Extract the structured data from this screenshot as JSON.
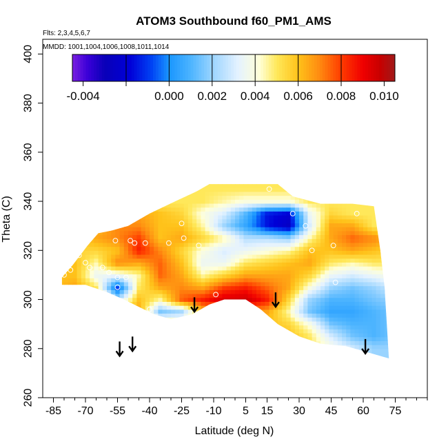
{
  "chart_data": {
    "type": "heatmap",
    "title": "ATOM3 Southbound f60_PM1_AMS",
    "flights_note": "Flts: 2,3,4,5,6,7",
    "dates_note": "MMDD: 1001,1004,1006,1008,1011,1014",
    "xlabel": "Latitude (deg N)",
    "ylabel": "Theta (C)",
    "xlim": [
      -90,
      90
    ],
    "ylim": [
      260,
      406
    ],
    "x_ticks": [
      -85,
      -70,
      -55,
      -40,
      -25,
      -10,
      5,
      15,
      30,
      45,
      60,
      75
    ],
    "x_tick_labels": [
      "-85",
      "-70",
      "-55",
      "-40",
      "-25",
      "-10",
      "5",
      "15",
      "30",
      "45",
      "60",
      "75"
    ],
    "x_minor_ticks": [
      -80,
      -75,
      -65,
      -60,
      -50,
      -45,
      -35,
      -30,
      -20,
      -15,
      -5,
      0,
      10,
      20,
      25,
      35,
      40,
      50,
      55,
      65,
      70,
      80,
      85,
      90
    ],
    "y_ticks": [
      260,
      280,
      300,
      320,
      340,
      360,
      380,
      400
    ],
    "y_tick_labels": [
      "260",
      "280",
      "300",
      "320",
      "340",
      "360",
      "380",
      "400"
    ],
    "colorbar": {
      "range": [
        -0.0045,
        0.0105
      ],
      "tick_values": [
        -0.004,
        0.0,
        0.002,
        0.004,
        0.006,
        0.008,
        0.01
      ],
      "tick_labels": [
        "-0.004",
        "0.000",
        "0.002",
        "0.004",
        "0.006",
        "0.008",
        "0.010"
      ],
      "minor_tick_values": [
        -0.002
      ],
      "divider_values": [
        -0.002,
        0.0,
        0.002,
        0.004,
        0.006,
        0.008
      ],
      "color_stops": [
        {
          "value": -0.0045,
          "color": "#7a1fe0"
        },
        {
          "value": -0.0038,
          "color": "#3b00d8"
        },
        {
          "value": -0.003,
          "color": "#0a00b8"
        },
        {
          "value": -0.0018,
          "color": "#0000d8"
        },
        {
          "value": -0.0008,
          "color": "#0044f4"
        },
        {
          "value": 0.0,
          "color": "#1a96ff"
        },
        {
          "value": 0.001,
          "color": "#4cb4ff"
        },
        {
          "value": 0.002,
          "color": "#9ad4ff"
        },
        {
          "value": 0.0032,
          "color": "#e4f2ff"
        },
        {
          "value": 0.0042,
          "color": "#ffffd8"
        },
        {
          "value": 0.005,
          "color": "#ffe85a"
        },
        {
          "value": 0.006,
          "color": "#ffc21a"
        },
        {
          "value": 0.007,
          "color": "#ff8a10"
        },
        {
          "value": 0.008,
          "color": "#ff3c00"
        },
        {
          "value": 0.009,
          "color": "#f00000"
        },
        {
          "value": 0.0098,
          "color": "#c80000"
        },
        {
          "value": 0.0105,
          "color": "#a01a1a"
        }
      ]
    },
    "arrows_lat": [
      -54,
      -48,
      -19,
      19,
      61
    ],
    "arrows_theta": [
      277,
      279,
      295,
      297,
      278
    ],
    "domain_outline": [
      [
        -81,
        309
      ],
      [
        -76,
        314
      ],
      [
        -69,
        322
      ],
      [
        -64,
        327
      ],
      [
        -58,
        328
      ],
      [
        -50,
        330
      ],
      [
        -40,
        335
      ],
      [
        -28,
        340
      ],
      [
        -18,
        344
      ],
      [
        -12,
        347
      ],
      [
        0,
        347
      ],
      [
        20,
        347
      ],
      [
        27,
        342
      ],
      [
        40,
        339
      ],
      [
        55,
        339
      ],
      [
        65,
        338
      ],
      [
        68,
        320
      ],
      [
        70,
        305
      ],
      [
        72,
        276
      ],
      [
        64,
        278
      ],
      [
        52,
        281
      ],
      [
        40,
        282
      ],
      [
        30,
        285
      ],
      [
        20,
        290
      ],
      [
        12,
        296
      ],
      [
        5,
        300
      ],
      [
        -5,
        300
      ],
      [
        -12,
        298
      ],
      [
        -20,
        294
      ],
      [
        -30,
        292
      ],
      [
        -38,
        294
      ],
      [
        -45,
        297
      ],
      [
        -52,
        300
      ],
      [
        -60,
        303
      ],
      [
        -70,
        306
      ],
      [
        -81,
        306
      ]
    ],
    "values_grid": {
      "lat": [
        -85,
        -75,
        -65,
        -55,
        -45,
        -35,
        -25,
        -15,
        -5,
        5,
        15,
        25,
        35,
        45,
        55,
        65,
        75
      ],
      "theta": [
        275,
        280,
        285,
        290,
        295,
        300,
        305,
        310,
        315,
        320,
        325,
        330,
        335,
        340,
        345,
        350
      ],
      "z": [
        [
          0.005,
          0.005,
          0.005,
          0.005,
          0.005,
          0.0055,
          0.006,
          0.006,
          0.006,
          0.0055,
          0.0055,
          0.005,
          0.005,
          0.005,
          0.005,
          0.005
        ],
        [
          0.005,
          0.005,
          0.005,
          0.005,
          0.005,
          0.006,
          0.0065,
          0.006,
          0.006,
          0.0055,
          0.0055,
          0.005,
          0.005,
          0.005,
          0.005,
          0.005
        ],
        [
          0.005,
          0.005,
          0.005,
          0.005,
          0.006,
          0.0065,
          0.005,
          0.0035,
          0.0045,
          0.0055,
          0.0065,
          0.006,
          0.005,
          0.005,
          0.005,
          0.005
        ],
        [
          0.005,
          0.005,
          0.005,
          0.005,
          0.006,
          0.0025,
          -0.001,
          0.0035,
          0.007,
          0.006,
          0.007,
          0.007,
          0.0065,
          0.006,
          0.006,
          0.006
        ],
        [
          0.005,
          0.005,
          0.005,
          0.0055,
          0.0065,
          0.006,
          0.005,
          0.0045,
          0.0065,
          0.0085,
          0.008,
          0.007,
          0.0065,
          0.006,
          0.006,
          0.006
        ],
        [
          0.005,
          0.005,
          0.005,
          0.0055,
          0.0015,
          0.0045,
          0.0065,
          0.0075,
          0.0075,
          0.007,
          0.006,
          0.006,
          0.006,
          0.005,
          0.005,
          0.005
        ],
        [
          0.005,
          0.005,
          0.005,
          0.0055,
          0.002,
          0.0075,
          0.007,
          0.0065,
          0.006,
          0.0055,
          0.0065,
          0.006,
          0.0055,
          0.005,
          0.005,
          0.005
        ],
        [
          0.006,
          0.006,
          0.006,
          0.006,
          0.006,
          0.0085,
          0.0065,
          0.0045,
          0.0035,
          0.004,
          0.0055,
          0.0045,
          0.004,
          0.005,
          0.005,
          0.005
        ],
        [
          0.006,
          0.006,
          0.006,
          0.006,
          0.0065,
          0.0095,
          0.008,
          0.0055,
          0.0035,
          0.003,
          0.0045,
          0.002,
          0.003,
          0.0045,
          0.005,
          0.005
        ],
        [
          0.006,
          0.006,
          0.006,
          0.006,
          0.007,
          0.0097,
          0.0085,
          0.0065,
          0.005,
          0.0035,
          0.0025,
          0.0005,
          0.001,
          0.004,
          0.005,
          0.005
        ],
        [
          0.006,
          0.006,
          0.006,
          0.006,
          0.0065,
          0.0085,
          0.0075,
          0.0065,
          0.0055,
          0.004,
          0.0025,
          -0.0015,
          -0.0015,
          0.004,
          0.005,
          0.005
        ],
        [
          0.006,
          0.006,
          0.006,
          0.0055,
          0.0045,
          0.0055,
          0.0065,
          0.0065,
          0.006,
          0.0045,
          0.002,
          -0.0025,
          -0.002,
          0.004,
          0.005,
          0.005
        ],
        [
          0.005,
          0.005,
          0.005,
          0.004,
          0.0015,
          0.002,
          0.004,
          0.0055,
          0.0065,
          0.006,
          0.0045,
          0.003,
          0.0035,
          0.005,
          0.005,
          0.005
        ],
        [
          0.004,
          0.004,
          0.003,
          0.0015,
          0.0005,
          0.001,
          0.002,
          0.0035,
          0.005,
          0.006,
          0.0065,
          0.0065,
          0.0055,
          0.005,
          0.005,
          0.005
        ],
        [
          0.003,
          0.003,
          0.0015,
          0.001,
          0.0005,
          0.001,
          0.0015,
          0.003,
          0.0045,
          0.0065,
          0.0075,
          0.0065,
          0.005,
          0.005,
          0.005,
          0.005
        ],
        [
          0.002,
          0.002,
          0.001,
          0.001,
          0.001,
          0.0015,
          0.002,
          0.0035,
          0.005,
          0.006,
          0.007,
          0.005,
          0.005,
          0.005,
          0.005,
          0.005
        ],
        [
          0.002,
          0.002,
          0.0015,
          0.0015,
          0.0015,
          0.002,
          0.003,
          0.004,
          0.005,
          0.0055,
          0.006,
          0.005,
          0.005,
          0.005,
          0.005,
          0.005
        ]
      ]
    },
    "observation_points": [
      [
        -80,
        310
      ],
      [
        -77,
        312
      ],
      [
        -73,
        318
      ],
      [
        -71,
        322
      ],
      [
        -70,
        315
      ],
      [
        -68,
        313
      ],
      [
        -62,
        313
      ],
      [
        -59,
        311
      ],
      [
        -56,
        324
      ],
      [
        -55,
        309
      ],
      [
        -55,
        305
      ],
      [
        -51,
        309
      ],
      [
        -49,
        324
      ],
      [
        -47,
        323
      ],
      [
        -42,
        323
      ],
      [
        -40,
        296
      ],
      [
        -31,
        323
      ],
      [
        -25,
        331
      ],
      [
        -24,
        325
      ],
      [
        -17,
        322
      ],
      [
        -9,
        302
      ],
      [
        16,
        345
      ],
      [
        22,
        347
      ],
      [
        27,
        335
      ],
      [
        33,
        330
      ],
      [
        36,
        320
      ],
      [
        46,
        322
      ],
      [
        47,
        307
      ],
      [
        57,
        335
      ],
      [
        72,
        296
      ]
    ]
  }
}
